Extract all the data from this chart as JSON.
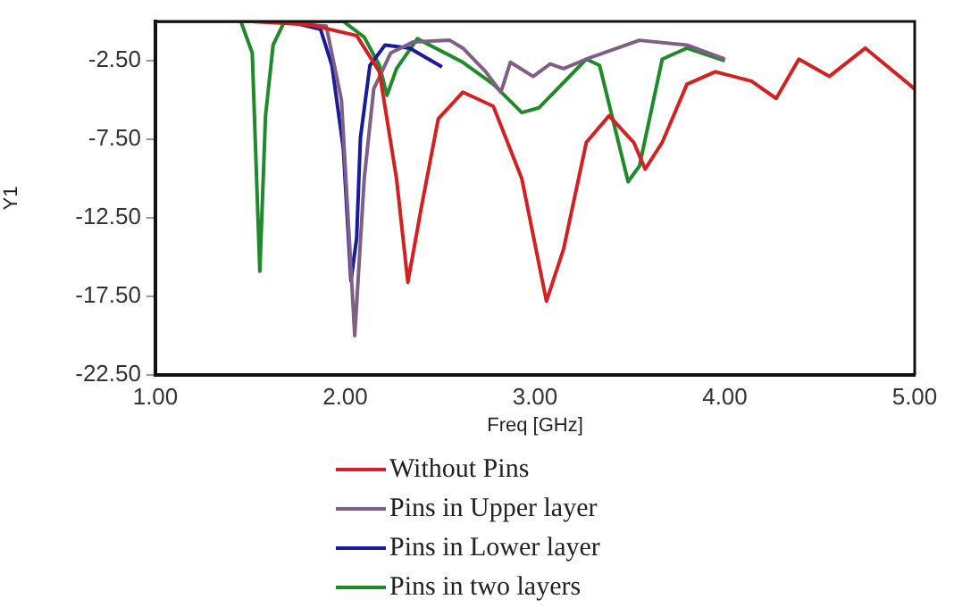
{
  "chart_data": {
    "type": "line",
    "xlabel": "Freq [GHz]",
    "ylabel": "Y1",
    "xlim": [
      1,
      5
    ],
    "ylim": [
      -22.5,
      0
    ],
    "xticks": [
      {
        "value": 1,
        "label": "1.00"
      },
      {
        "value": 2,
        "label": "2.00"
      },
      {
        "value": 3,
        "label": "3.00"
      },
      {
        "value": 4,
        "label": "4.00"
      },
      {
        "value": 5,
        "label": "5.00"
      }
    ],
    "yticks": [
      {
        "value": -22.5,
        "label": "-22.50"
      },
      {
        "value": -17.5,
        "label": "-17.50"
      },
      {
        "value": -12.5,
        "label": "-12.50"
      },
      {
        "value": -7.5,
        "label": "-7.50"
      },
      {
        "value": -2.5,
        "label": "-2.50"
      }
    ],
    "grid": false,
    "legend": "bottom",
    "marker": "none",
    "line_style": "solid",
    "series": [
      {
        "name": "Without Pins",
        "color": "#d42020",
        "x": [
          1,
          1.5,
          1.81,
          2.06,
          2.18,
          2.27,
          2.33,
          2.4,
          2.49,
          2.62,
          2.78,
          2.93,
          3.06,
          3.15,
          3.27,
          3.39,
          3.52,
          3.58,
          3.67,
          3.8,
          3.95,
          4.14,
          4.27,
          4.39,
          4.55,
          4.74,
          5
        ],
        "values": [
          0,
          0,
          -0.2,
          -0.9,
          -3.2,
          -10,
          -16.6,
          -11.9,
          -6.2,
          -4.5,
          -5.4,
          -10,
          -17.8,
          -14.5,
          -7.7,
          -6,
          -7.7,
          -9.4,
          -7.7,
          -4,
          -3.2,
          -3.8,
          -4.9,
          -2.4,
          -3.5,
          -1.7,
          -4.3
        ]
      },
      {
        "name": "Pins in Upper layer",
        "color": "#7f5f86",
        "x": [
          1,
          1.6,
          1.9,
          1.98,
          2.05,
          2.1,
          2.15,
          2.24,
          2.36,
          2.55,
          2.62,
          2.74,
          2.82,
          2.87,
          2.99,
          3.08,
          3.15,
          3.27,
          3.55,
          3.8,
          4
        ],
        "values": [
          0,
          0,
          -0.3,
          -5,
          -20,
          -10,
          -4.3,
          -2,
          -1.3,
          -1.2,
          -1.7,
          -3.2,
          -4.5,
          -2.6,
          -3.5,
          -2.7,
          -3,
          -2.4,
          -1.2,
          -1.5,
          -2.4
        ]
      },
      {
        "name": "Pins in Lower layer",
        "color": "#1a1a9a",
        "x": [
          1,
          1.7,
          1.87,
          1.93,
          1.99,
          2.03,
          2.06,
          2.08,
          2.13,
          2.21,
          2.34,
          2.51
        ],
        "values": [
          0,
          0,
          -0.5,
          -2.8,
          -8.1,
          -16.5,
          -13.8,
          -7.4,
          -2.8,
          -1.5,
          -1.7,
          -2.9
        ]
      },
      {
        "name": "Pins in two layers",
        "color": "#1f8a2a",
        "x": [
          1,
          1.45,
          1.51,
          1.55,
          1.58,
          1.62,
          1.68,
          1.99,
          2.1,
          2.18,
          2.22,
          2.27,
          2.38,
          2.62,
          2.78,
          2.93,
          3.02,
          3.27,
          3.34,
          3.49,
          3.55,
          3.67,
          3.8,
          4
        ],
        "values": [
          0,
          0,
          -2,
          -15.9,
          -6,
          -1.5,
          0,
          0,
          -1,
          -2.8,
          -4.7,
          -3,
          -1.1,
          -2.6,
          -4,
          -5.8,
          -5.5,
          -2.4,
          -2.8,
          -10.2,
          -9.2,
          -2.4,
          -1.7,
          -2.5
        ]
      }
    ]
  }
}
